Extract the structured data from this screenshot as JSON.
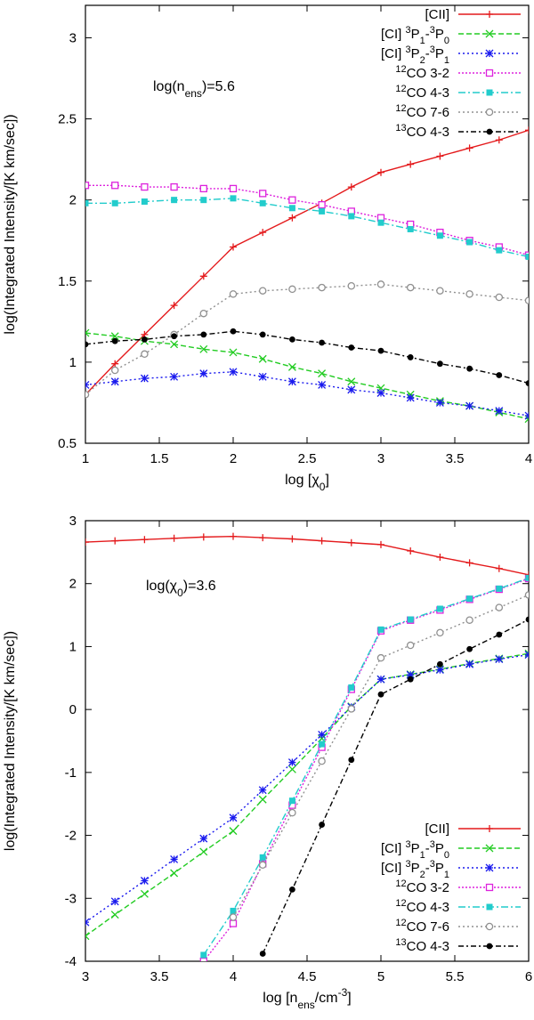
{
  "chart_data": [
    {
      "type": "line",
      "annotation": "log(n",
      "annotation_sub": "ens",
      "annotation_tail": ")=5.6",
      "xlabel": "log [χ",
      "xlabel_sub": "0",
      "xlabel_tail": "]",
      "ylabel": "log(Integrated Intensity/[K km/sec])",
      "xlim": [
        1,
        4
      ],
      "ylim": [
        0.5,
        3.2
      ],
      "xticks": [
        1,
        1.5,
        2,
        2.5,
        3,
        3.5,
        4
      ],
      "xtick_labels": [
        "1",
        "1.5",
        "2",
        "2.5",
        "3",
        "3.5",
        "4"
      ],
      "yticks": [
        0.5,
        1,
        1.5,
        2,
        2.5,
        3
      ],
      "ytick_labels": [
        "0.5",
        "1",
        "1.5",
        "2",
        "2.5",
        "3"
      ],
      "legend_position": "top-right",
      "series": [
        {
          "name": "[CII]",
          "color": "#e41a1c",
          "marker": "plus",
          "dash": "",
          "x": [
            1,
            1.2,
            1.4,
            1.6,
            1.8,
            2,
            2.2,
            2.4,
            2.6,
            2.8,
            3,
            3.2,
            3.4,
            3.6,
            3.8,
            4
          ],
          "y": [
            0.8,
            0.99,
            1.17,
            1.35,
            1.53,
            1.71,
            1.8,
            1.89,
            1.98,
            2.08,
            2.17,
            2.22,
            2.27,
            2.32,
            2.37,
            2.43
          ]
        },
        {
          "name": "[CI] 3P1-3P0",
          "color": "#22cc22",
          "marker": "x",
          "dash": "6,3",
          "x": [
            1,
            1.2,
            1.4,
            1.6,
            1.8,
            2,
            2.2,
            2.4,
            2.6,
            2.8,
            3,
            3.2,
            3.4,
            3.6,
            3.8,
            4
          ],
          "y": [
            1.18,
            1.16,
            1.13,
            1.11,
            1.08,
            1.06,
            1.02,
            0.97,
            0.93,
            0.88,
            0.84,
            0.8,
            0.76,
            0.73,
            0.69,
            0.65
          ]
        },
        {
          "name": "[CI] 3P2-3P1",
          "color": "#1a1aee",
          "marker": "star",
          "dash": "2,3",
          "x": [
            1,
            1.2,
            1.4,
            1.6,
            1.8,
            2,
            2.2,
            2.4,
            2.6,
            2.8,
            3,
            3.2,
            3.4,
            3.6,
            3.8,
            4
          ],
          "y": [
            0.86,
            0.88,
            0.9,
            0.91,
            0.93,
            0.94,
            0.91,
            0.88,
            0.86,
            0.83,
            0.81,
            0.78,
            0.75,
            0.73,
            0.7,
            0.67
          ]
        },
        {
          "name": "12CO 3-2",
          "color": "#dd22dd",
          "marker": "square-open",
          "dash": "2,2",
          "x": [
            1,
            1.2,
            1.4,
            1.6,
            1.8,
            2,
            2.2,
            2.4,
            2.6,
            2.8,
            3,
            3.2,
            3.4,
            3.6,
            3.8,
            4
          ],
          "y": [
            2.09,
            2.09,
            2.08,
            2.08,
            2.07,
            2.07,
            2.04,
            2.0,
            1.97,
            1.93,
            1.89,
            1.85,
            1.8,
            1.75,
            1.71,
            1.66
          ]
        },
        {
          "name": "12CO 4-3",
          "color": "#22cccc",
          "marker": "square",
          "dash": "8,3,2,3",
          "x": [
            1,
            1.2,
            1.4,
            1.6,
            1.8,
            2,
            2.2,
            2.4,
            2.6,
            2.8,
            3,
            3.2,
            3.4,
            3.6,
            3.8,
            4
          ],
          "y": [
            1.98,
            1.98,
            1.99,
            2.0,
            2.0,
            2.01,
            1.98,
            1.95,
            1.93,
            1.9,
            1.86,
            1.82,
            1.78,
            1.74,
            1.69,
            1.65
          ]
        },
        {
          "name": "12CO 7-6",
          "color": "#909090",
          "marker": "circle-open",
          "dash": "2,3",
          "x": [
            1,
            1.2,
            1.4,
            1.6,
            1.8,
            2,
            2.2,
            2.4,
            2.6,
            2.8,
            3,
            3.2,
            3.4,
            3.6,
            3.8,
            4
          ],
          "y": [
            0.8,
            0.95,
            1.05,
            1.17,
            1.3,
            1.42,
            1.44,
            1.45,
            1.46,
            1.47,
            1.48,
            1.46,
            1.44,
            1.42,
            1.4,
            1.38
          ]
        },
        {
          "name": "13CO 4-3",
          "color": "#000000",
          "marker": "circle",
          "dash": "6,3,2,3",
          "x": [
            1,
            1.2,
            1.4,
            1.6,
            1.8,
            2,
            2.2,
            2.4,
            2.6,
            2.8,
            3,
            3.2,
            3.4,
            3.6,
            3.8,
            4
          ],
          "y": [
            1.11,
            1.13,
            1.14,
            1.16,
            1.17,
            1.19,
            1.17,
            1.14,
            1.12,
            1.09,
            1.07,
            1.03,
            0.99,
            0.96,
            0.92,
            0.87
          ]
        }
      ]
    },
    {
      "type": "line",
      "annotation": "log(χ",
      "annotation_sub": "0",
      "annotation_tail": ")=3.6",
      "xlabel": "log [n",
      "xlabel_sub": "ens",
      "xlabel_tail": "/cm",
      "xlabel_sup": "-3",
      "xlabel_end": "]",
      "ylabel": "log(Integrated Intensity/[K km/sec])",
      "xlim": [
        3,
        6
      ],
      "ylim": [
        -4,
        3
      ],
      "xticks": [
        3,
        3.5,
        4,
        4.5,
        5,
        5.5,
        6
      ],
      "xtick_labels": [
        "3",
        "3.5",
        "4",
        "4.5",
        "5",
        "5.5",
        "6"
      ],
      "yticks": [
        -4,
        -3,
        -2,
        -1,
        0,
        1,
        2,
        3
      ],
      "ytick_labels": [
        "-4",
        "-3",
        "-2",
        "-1",
        "0",
        "1",
        "2",
        "3"
      ],
      "legend_position": "bottom-right",
      "series": [
        {
          "name": "[CII]",
          "color": "#e41a1c",
          "marker": "plus",
          "dash": "",
          "x": [
            3,
            3.2,
            3.4,
            3.6,
            3.8,
            4,
            4.2,
            4.4,
            4.6,
            4.8,
            5,
            5.2,
            5.4,
            5.6,
            5.8,
            6
          ],
          "y": [
            2.66,
            2.68,
            2.7,
            2.72,
            2.74,
            2.75,
            2.73,
            2.71,
            2.68,
            2.65,
            2.62,
            2.52,
            2.42,
            2.33,
            2.24,
            2.14
          ]
        },
        {
          "name": "[CI] 3P1-3P0",
          "color": "#22cc22",
          "marker": "x",
          "dash": "6,3",
          "x": [
            3,
            3.2,
            3.4,
            3.6,
            3.8,
            4,
            4.2,
            4.4,
            4.6,
            4.8,
            5,
            5.2,
            5.4,
            5.6,
            5.8,
            6
          ],
          "y": [
            -3.6,
            -3.26,
            -2.93,
            -2.6,
            -2.26,
            -1.93,
            -1.43,
            -0.95,
            -0.46,
            0.05,
            0.48,
            0.56,
            0.64,
            0.73,
            0.81,
            0.89
          ]
        },
        {
          "name": "[CI] 3P2-3P1",
          "color": "#1a1aee",
          "marker": "star",
          "dash": "2,3",
          "x": [
            3,
            3.2,
            3.4,
            3.6,
            3.8,
            4,
            4.2,
            4.4,
            4.6,
            4.8,
            5,
            5.2,
            5.4,
            5.6,
            5.8,
            6
          ],
          "y": [
            -3.38,
            -3.05,
            -2.72,
            -2.38,
            -2.05,
            -1.72,
            -1.28,
            -0.84,
            -0.4,
            0.04,
            0.48,
            0.55,
            0.63,
            0.72,
            0.8,
            0.87
          ]
        },
        {
          "name": "12CO 3-2",
          "color": "#dd22dd",
          "marker": "square-open",
          "dash": "2,2",
          "x": [
            3.8,
            4,
            4.2,
            4.4,
            4.6,
            4.8,
            5,
            5.2,
            5.4,
            5.6,
            5.8,
            6
          ],
          "y": [
            -4,
            -3.4,
            -2.45,
            -1.52,
            -0.6,
            0.32,
            1.25,
            1.42,
            1.58,
            1.75,
            1.91,
            2.08
          ]
        },
        {
          "name": "12CO 4-3",
          "color": "#22cccc",
          "marker": "square",
          "dash": "8,3,2,3",
          "x": [
            3.8,
            4,
            4.2,
            4.4,
            4.6,
            4.8,
            5,
            5.2,
            5.4,
            5.6,
            5.8,
            6
          ],
          "y": [
            -3.9,
            -3.2,
            -2.35,
            -1.45,
            -0.55,
            0.35,
            1.27,
            1.43,
            1.6,
            1.76,
            1.92,
            2.09
          ]
        },
        {
          "name": "12CO 7-6",
          "color": "#909090",
          "marker": "circle-open",
          "dash": "2,3",
          "x": [
            4,
            4.2,
            4.4,
            4.6,
            4.8,
            5,
            5.2,
            5.4,
            5.6,
            5.8,
            6
          ],
          "y": [
            -3.3,
            -2.47,
            -1.64,
            -0.82,
            0.01,
            0.82,
            1.02,
            1.22,
            1.42,
            1.62,
            1.82
          ]
        },
        {
          "name": "13CO 4-3",
          "color": "#000000",
          "marker": "circle",
          "dash": "6,3,2,3",
          "x": [
            4.2,
            4.4,
            4.6,
            4.8,
            5,
            5.2,
            5.4,
            5.6,
            5.8,
            6
          ],
          "y": [
            -3.88,
            -2.86,
            -1.83,
            -0.8,
            0.24,
            0.48,
            0.72,
            0.96,
            1.19,
            1.43
          ]
        }
      ]
    }
  ]
}
